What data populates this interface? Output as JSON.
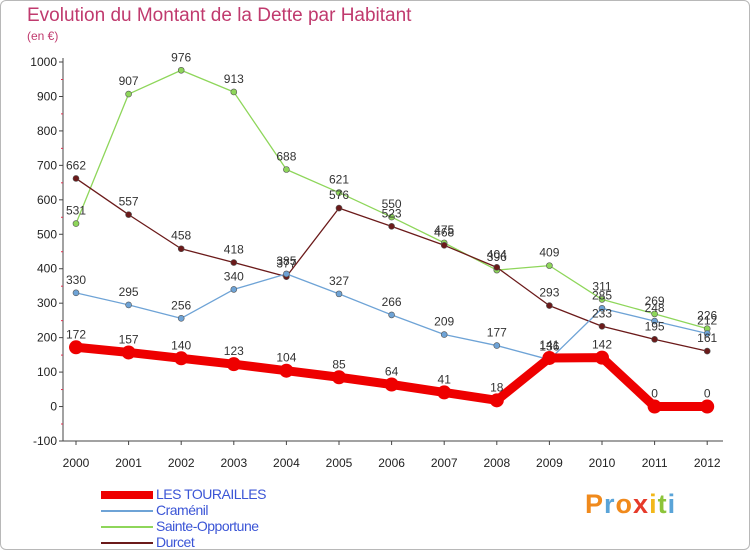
{
  "title": "Evolution du Montant de la Dette par Habitant",
  "subtitle": "(en €)",
  "logo": {
    "letters": [
      "P",
      "r",
      "o",
      "x",
      "i",
      "t",
      "i"
    ],
    "colors": [
      "#f08a1c",
      "#5aa4d8",
      "#f08a1c",
      "#e63a2a",
      "#f2b81a",
      "#8cc43a",
      "#5aa4d8"
    ]
  },
  "chart_data": {
    "type": "line",
    "x": [
      "2000",
      "2001",
      "2002",
      "2003",
      "2004",
      "2005",
      "2006",
      "2007",
      "2008",
      "2009",
      "2010",
      "2011",
      "2012"
    ],
    "ylim": [
      -100,
      1000
    ],
    "yticks": [
      -100,
      0,
      100,
      200,
      300,
      400,
      500,
      600,
      700,
      800,
      900,
      1000
    ],
    "legend_position": "bottom-left",
    "grid": false,
    "series": [
      {
        "name": "Sainte-Opportune",
        "color": "#8ed65a",
        "values": [
          531,
          907,
          976,
          913,
          688,
          621,
          550,
          475,
          396,
          409,
          311,
          269,
          226
        ],
        "labels": [
          "531",
          "907",
          "976",
          "913",
          "688",
          "621",
          "550",
          "475",
          "396",
          "409",
          "311",
          "269",
          "226"
        ]
      },
      {
        "name": "Durcet",
        "color": "#6b1a1a",
        "values": [
          662,
          557,
          458,
          418,
          377,
          576,
          523,
          468,
          404,
          293,
          233,
          195,
          161
        ],
        "labels": [
          "662",
          "557",
          "458",
          "418",
          "377",
          "576",
          "523",
          "468",
          "404",
          "293",
          "233",
          "195",
          "161"
        ]
      },
      {
        "name": "Craménil",
        "color": "#6ea3d6",
        "values": [
          330,
          295,
          256,
          340,
          385,
          327,
          266,
          209,
          177,
          136,
          285,
          248,
          212
        ],
        "labels": [
          "330",
          "295",
          "256",
          "340",
          "385",
          "327",
          "266",
          "209",
          "177",
          "136",
          "285",
          "248",
          "212"
        ]
      },
      {
        "name": "LES TOURAILLES",
        "color": "#ee0000",
        "values": [
          172,
          157,
          140,
          123,
          104,
          85,
          64,
          41,
          18,
          141,
          142,
          0,
          0
        ],
        "labels": [
          "172",
          "157",
          "140",
          "123",
          "104",
          "85",
          "64",
          "41",
          "18",
          "141",
          "142",
          "0",
          "0"
        ]
      }
    ],
    "legend_order": [
      "LES TOURAILLES",
      "Craménil",
      "Sainte-Opportune",
      "Durcet"
    ]
  }
}
